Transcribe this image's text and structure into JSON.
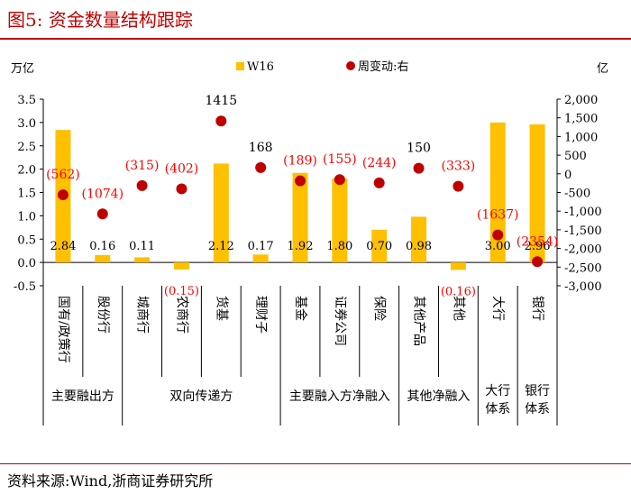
{
  "title": "图5:   资金数量结构跟踪",
  "source": "资料来源:Wind,浙商证券研究所",
  "colors": {
    "bar": "#ffc000",
    "dot": "#c00000",
    "label_red": "#ff0000",
    "title": "#c00000"
  },
  "chart_data": {
    "type": "bar",
    "left_unit": "万亿",
    "right_unit": "亿",
    "categories": [
      "国有/政策行",
      "股份行",
      "城商行",
      "农商行",
      "货基",
      "理财子",
      "基金",
      "证券公司",
      "保险",
      "其他产品",
      "其他",
      "大行",
      "银行"
    ],
    "series": [
      {
        "name": "W16",
        "axis": "left",
        "type": "bar",
        "values": [
          2.84,
          0.16,
          0.11,
          -0.15,
          2.12,
          0.17,
          1.92,
          1.8,
          0.7,
          0.98,
          -0.16,
          3.0,
          2.96
        ]
      },
      {
        "name": "周变动:右",
        "axis": "right",
        "type": "scatter",
        "values": [
          -562,
          -1074,
          -315,
          -402,
          1415,
          168,
          -189,
          -155,
          -244,
          150,
          -333,
          -1637,
          -2354
        ]
      }
    ],
    "bar_labels": [
      "2.84",
      "0.16",
      "0.11",
      "(0.15)",
      "2.12",
      "0.17",
      "1.92",
      "1.80",
      "0.70",
      "0.98",
      "(0.16)",
      "3.00",
      "2.96"
    ],
    "dot_labels": [
      "(562)",
      "(1074)",
      "(315)",
      "(402)",
      "1415",
      "168",
      "(189)",
      "(155)",
      "(244)",
      "150",
      "(333)",
      "(1637)",
      "(2354)"
    ],
    "ylim_left": [
      -0.5,
      3.5
    ],
    "ylim_right": [
      -3000,
      2000
    ],
    "left_ticks": [
      "3.5",
      "3.0",
      "2.5",
      "2.0",
      "1.5",
      "1.0",
      "0.5",
      "0.0",
      "-0.5"
    ],
    "right_ticks": [
      "2,000",
      "1,500",
      "1,000",
      "500",
      "0",
      "-500",
      "-1,000",
      "-1,500",
      "-2,000",
      "-2,500",
      "-3,000"
    ],
    "groups": [
      {
        "label": "主要融出方",
        "span": 2
      },
      {
        "label": "双向传递方",
        "span": 4
      },
      {
        "label": "主要融入方净融入",
        "span": 3
      },
      {
        "label": "其他净融入",
        "span": 2
      },
      {
        "label": "大行\n体系",
        "span": 1
      },
      {
        "label": "银行\n体系",
        "span": 1
      }
    ],
    "legend": [
      "W16",
      "周变动:右"
    ]
  }
}
